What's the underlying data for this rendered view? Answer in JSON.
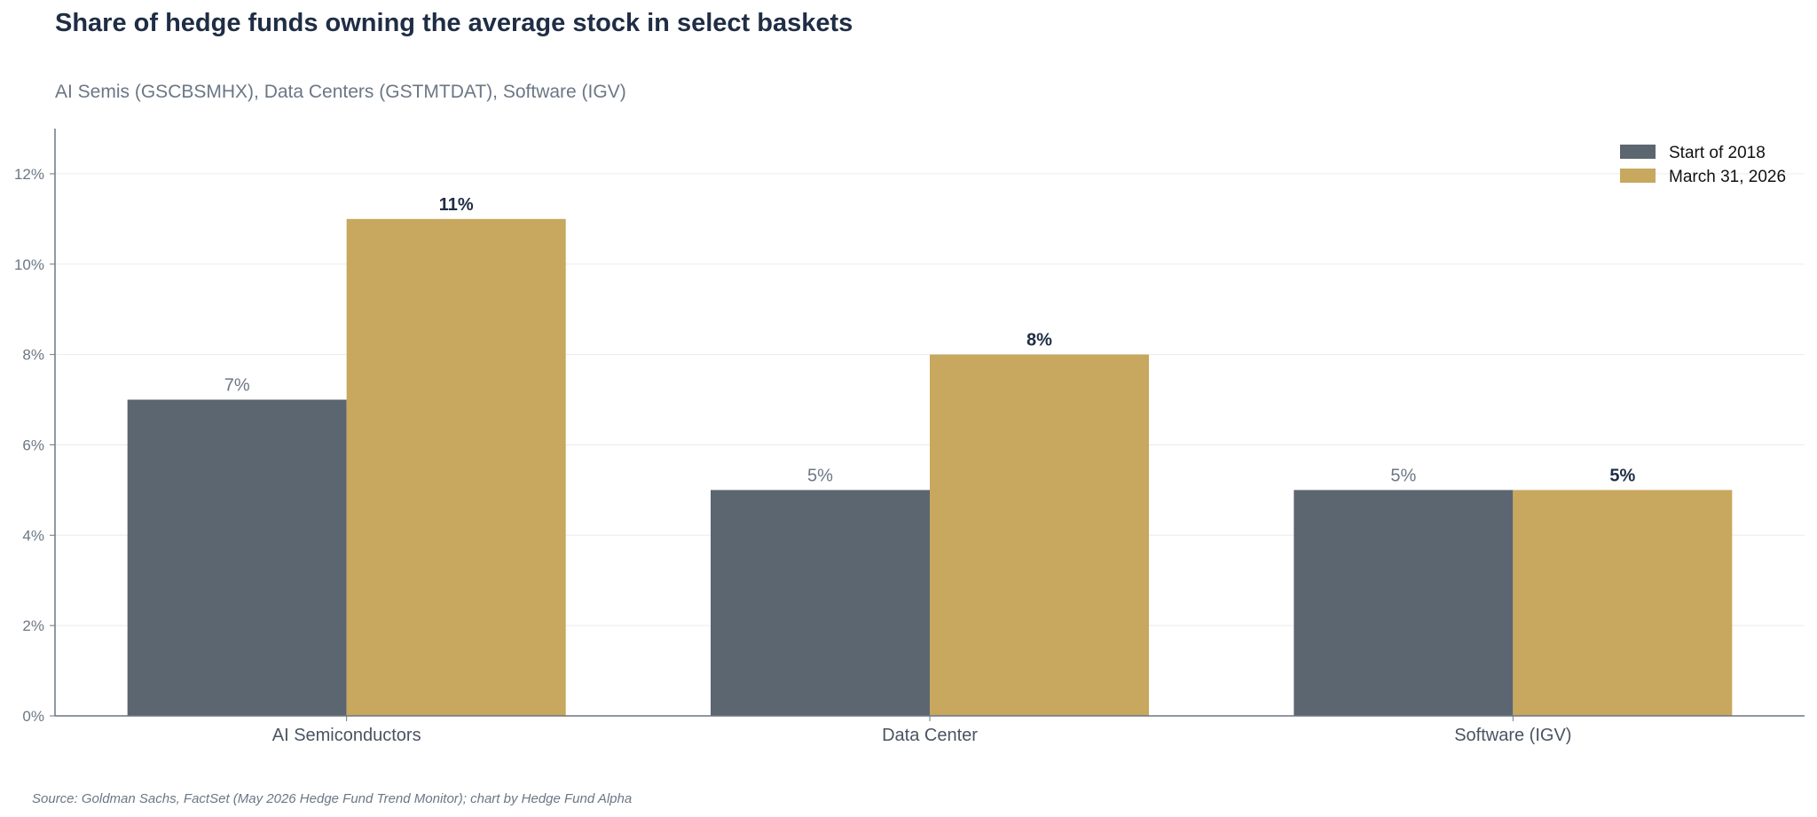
{
  "chart_data": {
    "type": "bar",
    "title": "Share of hedge funds owning the average stock in select baskets",
    "subtitle": "AI Semis (GSCBSMHX), Data Centers (GSTMTDAT), Software (IGV)",
    "categories": [
      "AI Semiconductors",
      "Data Center",
      "Software (IGV)"
    ],
    "series": [
      {
        "name": "Start of 2018",
        "values": [
          7,
          5,
          5
        ],
        "labels": [
          "7%",
          "5%",
          "5%"
        ],
        "color": "#5c6670"
      },
      {
        "name": "March 31, 2026",
        "values": [
          11,
          8,
          5
        ],
        "labels": [
          "11%",
          "8%",
          "5%"
        ],
        "color": "#c8a75e"
      }
    ],
    "yticks": [
      0,
      2,
      4,
      6,
      8,
      10,
      12
    ],
    "ytick_labels": [
      "0%",
      "2%",
      "4%",
      "6%",
      "8%",
      "10%",
      "12%"
    ],
    "ylim": [
      0,
      13
    ],
    "xlabel": "",
    "ylabel": "",
    "grid": true,
    "legend_position": "top-right",
    "source": "Source: Goldman Sachs, FactSet (May 2026 Hedge Fund Trend Monitor); chart by Hedge Fund Alpha"
  }
}
